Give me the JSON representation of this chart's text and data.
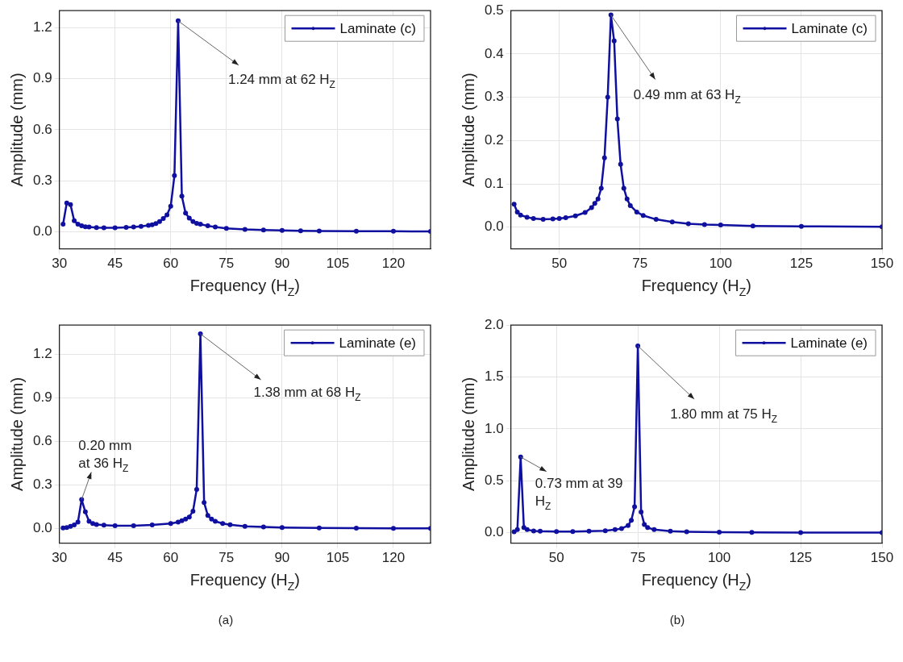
{
  "chart_data": [
    {
      "type": "line",
      "xlabel": "Frequency (H$_{Z}$)",
      "ylabel": "Amplitude (mm)",
      "marker": "circle",
      "grid": true,
      "legend": "top right",
      "xlim": [
        30,
        130
      ],
      "xticks": [
        30,
        45,
        60,
        75,
        90,
        105,
        120
      ],
      "ylim": [
        -0.1,
        1.3
      ],
      "yticks": [
        {
          "value": 0,
          "label": "0.0"
        },
        0.3,
        0.6,
        0.9,
        1.2
      ],
      "x": [
        31,
        32,
        33,
        34,
        35,
        36,
        37,
        38,
        40,
        42,
        45,
        48,
        50,
        52,
        54,
        55,
        56,
        57,
        58,
        59,
        60,
        61,
        62,
        63,
        64,
        65,
        66,
        67,
        68,
        70,
        72,
        75,
        80,
        85,
        90,
        95,
        100,
        110,
        120,
        130
      ],
      "series": [
        {
          "name": "Laminate (c)",
          "color": "#1010a0",
          "values": [
            0.045,
            0.17,
            0.16,
            0.065,
            0.045,
            0.035,
            0.03,
            0.028,
            0.025,
            0.024,
            0.024,
            0.026,
            0.028,
            0.032,
            0.038,
            0.042,
            0.048,
            0.06,
            0.078,
            0.1,
            0.15,
            0.33,
            1.24,
            0.21,
            0.11,
            0.08,
            0.06,
            0.05,
            0.045,
            0.035,
            0.028,
            0.02,
            0.014,
            0.011,
            0.008,
            0.006,
            0.005,
            0.004,
            0.003,
            0.002
          ]
        }
      ],
      "annotations": [
        {
          "text": "1.24 mm at 62 H$_{Z}$",
          "x": 62,
          "y": 1.24
        }
      ]
    },
    {
      "type": "line",
      "xlabel": "Frequency (H$_{Z}$)",
      "ylabel": "Amplitude (mm)",
      "marker": "circle",
      "grid": true,
      "legend": "top right",
      "xlim": [
        35,
        150
      ],
      "xticks": [
        50,
        75,
        100,
        125,
        150
      ],
      "ylim": [
        -0.05,
        0.5
      ],
      "yticks": [
        {
          "value": 0,
          "label": "0.0"
        },
        0.1,
        0.2,
        0.3,
        0.4,
        0.5
      ],
      "x": [
        36,
        37,
        38,
        40,
        42,
        45,
        48,
        50,
        52,
        55,
        58,
        60,
        61,
        62,
        63,
        64,
        65,
        66,
        67,
        68,
        69,
        70,
        71,
        72,
        74,
        76,
        80,
        85,
        90,
        95,
        100,
        110,
        125,
        150
      ],
      "series": [
        {
          "name": "Laminate (c)",
          "color": "#1010a0",
          "values": [
            0.053,
            0.035,
            0.028,
            0.023,
            0.02,
            0.018,
            0.019,
            0.02,
            0.022,
            0.026,
            0.034,
            0.045,
            0.055,
            0.065,
            0.09,
            0.16,
            0.3,
            0.49,
            0.43,
            0.25,
            0.145,
            0.09,
            0.065,
            0.05,
            0.035,
            0.027,
            0.018,
            0.012,
            0.008,
            0.006,
            0.005,
            0.003,
            0.002,
            0.001
          ]
        }
      ],
      "annotations": [
        {
          "text": "0.49 mm at 63 H$_{Z}$",
          "x": 66,
          "y": 0.49
        }
      ]
    },
    {
      "type": "line",
      "xlabel": "Frequency (H$_{Z}$)",
      "ylabel": "Amplitude (mm)",
      "marker": "circle",
      "grid": true,
      "legend": "top right",
      "xlim": [
        30,
        130
      ],
      "xticks": [
        30,
        45,
        60,
        75,
        90,
        105,
        120
      ],
      "ylim": [
        -0.1,
        1.4
      ],
      "yticks": [
        {
          "value": 0,
          "label": "0.0"
        },
        0.3,
        0.6,
        0.9,
        1.2
      ],
      "x": [
        31,
        32,
        33,
        34,
        35,
        36,
        37,
        38,
        39,
        40,
        42,
        45,
        50,
        55,
        60,
        62,
        63,
        64,
        65,
        66,
        67,
        68,
        69,
        70,
        71,
        72,
        74,
        76,
        80,
        85,
        90,
        100,
        110,
        120,
        130
      ],
      "series": [
        {
          "name": "Laminate (e)",
          "color": "#1010a0",
          "values": [
            0.005,
            0.008,
            0.015,
            0.025,
            0.045,
            0.2,
            0.115,
            0.05,
            0.035,
            0.028,
            0.024,
            0.02,
            0.02,
            0.025,
            0.035,
            0.045,
            0.055,
            0.065,
            0.08,
            0.12,
            0.27,
            1.34,
            0.18,
            0.09,
            0.065,
            0.05,
            0.035,
            0.027,
            0.016,
            0.011,
            0.008,
            0.005,
            0.003,
            0.002,
            0.002
          ]
        }
      ],
      "annotations": [
        {
          "text": "1.38 mm at 68 H$_{Z}$",
          "x": 68,
          "y": 1.34
        },
        {
          "text": "0.20 mm at 36 H$_{Z}$",
          "x": 36,
          "y": 0.2
        },
        "(a)"
      ]
    },
    {
      "type": "line",
      "xlabel": "Frequency (H$_{Z}$)",
      "ylabel": "Amplitude (mm)",
      "marker": "circle",
      "grid": true,
      "legend": "top right",
      "xlim": [
        36,
        150
      ],
      "xticks": [
        50,
        75,
        100,
        125,
        150
      ],
      "ylim": [
        -0.1,
        2.0
      ],
      "yticks": [
        {
          "value": 0,
          "label": "0.0"
        },
        0.5,
        {
          "value": 1,
          "label": "1.0"
        },
        1.5,
        {
          "value": 2,
          "label": "2.0"
        }
      ],
      "x": [
        37,
        38,
        39,
        40,
        41,
        43,
        45,
        50,
        55,
        60,
        65,
        68,
        70,
        72,
        73,
        74,
        75,
        76,
        77,
        78,
        80,
        85,
        90,
        100,
        110,
        125,
        150
      ],
      "series": [
        {
          "name": "Laminate (e)",
          "color": "#1010a0",
          "values": [
            0.01,
            0.03,
            0.73,
            0.05,
            0.03,
            0.018,
            0.015,
            0.012,
            0.012,
            0.015,
            0.02,
            0.03,
            0.04,
            0.07,
            0.12,
            0.25,
            1.8,
            0.2,
            0.08,
            0.05,
            0.03,
            0.015,
            0.01,
            0.005,
            0.003,
            0.002,
            0.001
          ]
        }
      ],
      "annotations": [
        {
          "text": "1.80 mm at 75 H$_{Z}$",
          "x": 75,
          "y": 1.8
        },
        {
          "text": "0.73 mm at 39 H$_{Z}$",
          "x": 39,
          "y": 0.73
        },
        "(b)"
      ]
    }
  ]
}
